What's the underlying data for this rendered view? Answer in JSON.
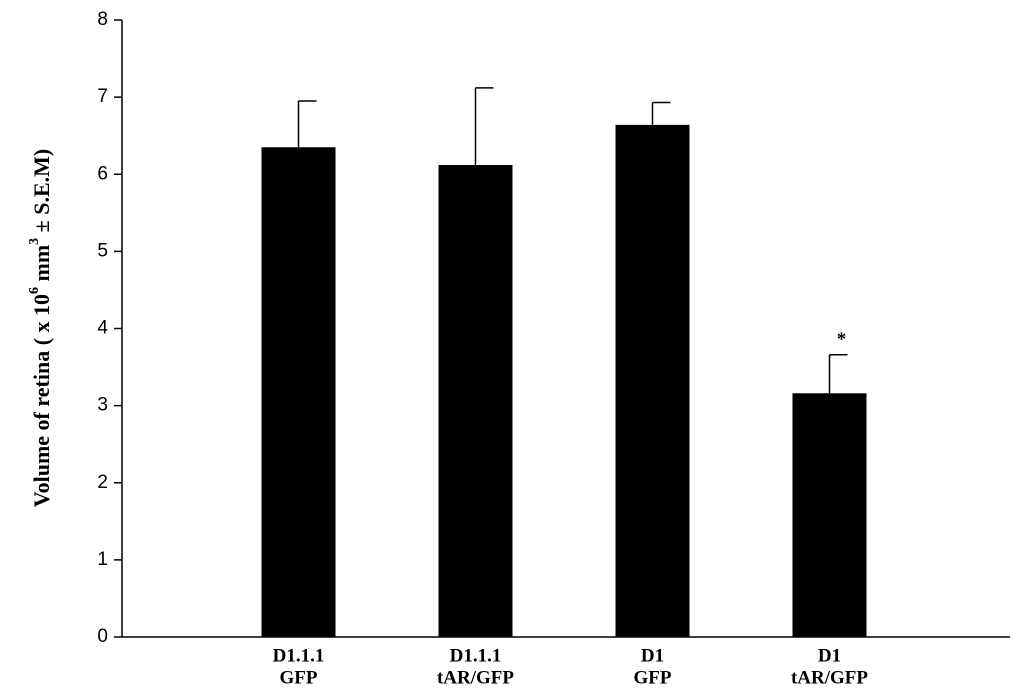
{
  "chart_data": {
    "type": "bar",
    "y_label": [
      "Volume of retina ( x 10",
      "6",
      " mm",
      "3",
      " ± S.E.M)"
    ],
    "categories": [
      [
        "D1.1.1",
        "GFP"
      ],
      [
        "D1.1.1",
        "tAR/GFP"
      ],
      [
        "D1",
        "GFP"
      ],
      [
        "D1",
        "tAR/GFP"
      ]
    ],
    "values": [
      6.35,
      6.12,
      6.64,
      3.16
    ],
    "errors": [
      0.6,
      1.0,
      0.29,
      0.5
    ],
    "annotations": [
      null,
      null,
      null,
      "*"
    ],
    "color": "#000000",
    "ylim": [
      0,
      8
    ],
    "yticks": [
      0,
      1,
      2,
      3,
      4,
      5,
      6,
      7,
      8
    ],
    "grid": false
  }
}
